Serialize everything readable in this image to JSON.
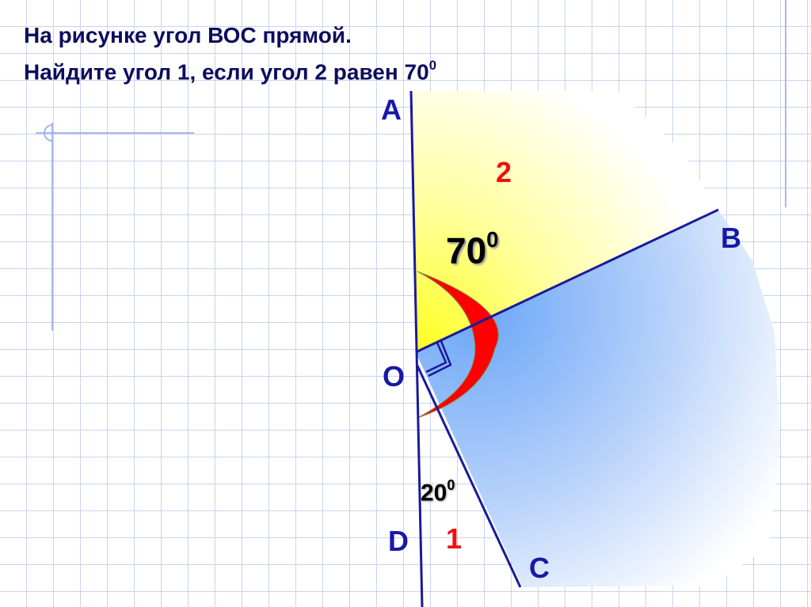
{
  "title": {
    "line1": "На рисунке угол ВОС прямой.",
    "line2": "Найдите угол 1, если угол 2 равен 70",
    "line2_sup": "0"
  },
  "diagram": {
    "points": {
      "A": "A",
      "B": "B",
      "C": "C",
      "D": "D",
      "O": "O"
    },
    "angle2": {
      "label": "2",
      "value": "70",
      "sup": "0"
    },
    "angle1": {
      "label": "1",
      "value": "20",
      "sup": "0"
    },
    "colors": {
      "lines": "#1a1a9a",
      "angle_labels": "#ee1111",
      "arc": "#ff0000",
      "yellow_sector": "#ffff33",
      "blue_sector": "#6fa8f5"
    }
  }
}
